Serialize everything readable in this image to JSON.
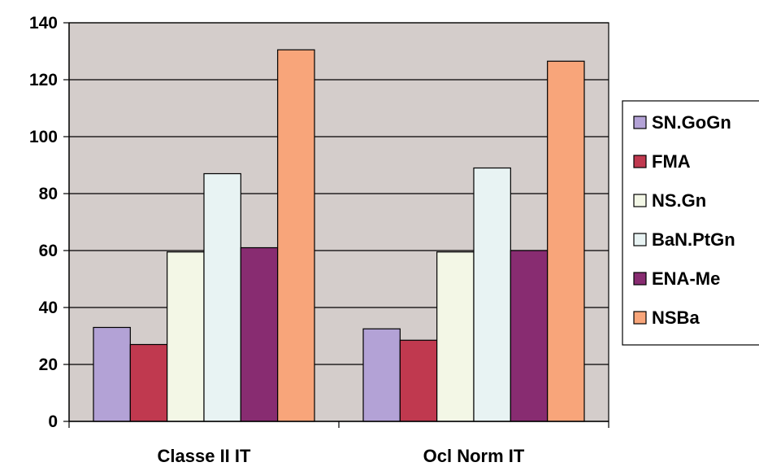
{
  "chart_data": {
    "type": "bar",
    "title": "",
    "xlabel": "",
    "ylabel": "",
    "ylim": [
      0,
      140
    ],
    "yticks": [
      0,
      20,
      40,
      60,
      80,
      100,
      120,
      140
    ],
    "grid": true,
    "legend_position": "right",
    "plot_background": "#d4cdcb",
    "categories": [
      "Classe II IT",
      "Ocl Norm IT"
    ],
    "series": [
      {
        "name": "SN.GoGn",
        "color": "#b3a2d6",
        "values": [
          33,
          32.5
        ]
      },
      {
        "name": "FMA",
        "color": "#c0394f",
        "values": [
          27,
          28.5
        ]
      },
      {
        "name": "NS.Gn",
        "color": "#f3f7e6",
        "values": [
          59.5,
          59.5
        ]
      },
      {
        "name": "BaN.PtGn",
        "color": "#e8f3f3",
        "values": [
          87,
          89
        ]
      },
      {
        "name": "ENA-Me",
        "color": "#882c71",
        "values": [
          61,
          60
        ]
      },
      {
        "name": "NSBa",
        "color": "#f8a57a",
        "values": [
          130.5,
          126.5
        ]
      }
    ]
  }
}
